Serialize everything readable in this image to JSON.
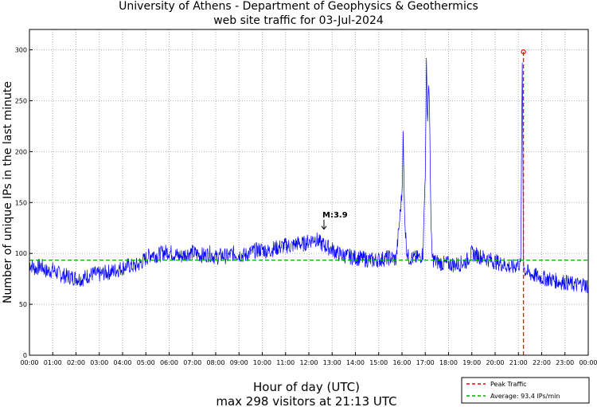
{
  "chart_data": {
    "type": "line",
    "title": "University of Athens - Department of Geophysics & Geothermics",
    "subtitle": "web site traffic for 03-Jul-2024",
    "xlabel": "Hour of day (UTC)",
    "ylabel": "Number of unique IPs in the last minute",
    "footer": "max 298 visitors at 21:13 UTC",
    "xlim": [
      0,
      24
    ],
    "ylim": [
      0,
      320
    ],
    "x_ticks": [
      "00:00",
      "01:00",
      "02:00",
      "03:00",
      "04:00",
      "05:00",
      "06:00",
      "07:00",
      "08:00",
      "09:00",
      "10:00",
      "11:00",
      "12:00",
      "13:00",
      "14:00",
      "15:00",
      "16:00",
      "17:00",
      "18:00",
      "19:00",
      "20:00",
      "21:00",
      "22:00",
      "23:00",
      "00:00"
    ],
    "y_ticks": [
      0,
      50,
      100,
      150,
      200,
      250,
      300
    ],
    "grid": true,
    "series": [
      {
        "color": "#0000ff",
        "x": [
          0.0,
          0.25,
          0.5,
          0.75,
          1.0,
          1.25,
          1.5,
          1.75,
          2.0,
          2.25,
          2.5,
          2.75,
          3.0,
          3.25,
          3.5,
          3.75,
          4.0,
          4.25,
          4.5,
          4.75,
          5.0,
          5.25,
          5.5,
          5.75,
          6.0,
          6.25,
          6.5,
          6.75,
          7.0,
          7.25,
          7.5,
          7.75,
          8.0,
          8.25,
          8.5,
          8.75,
          9.0,
          9.25,
          9.5,
          9.75,
          10.0,
          10.25,
          10.5,
          10.75,
          11.0,
          11.25,
          11.5,
          11.75,
          12.0,
          12.25,
          12.5,
          12.75,
          13.0,
          13.25,
          13.5,
          13.75,
          14.0,
          14.25,
          14.5,
          14.75,
          15.0,
          15.25,
          15.5,
          15.75,
          16.0,
          16.05,
          16.1,
          16.15,
          16.2,
          16.25,
          16.3,
          16.5,
          16.75,
          16.9,
          17.0,
          17.05,
          17.1,
          17.15,
          17.2,
          17.25,
          17.3,
          17.35,
          17.45,
          17.6,
          17.75,
          18.0,
          18.25,
          18.5,
          18.75,
          19.0,
          19.25,
          19.5,
          19.75,
          20.0,
          20.25,
          20.5,
          20.75,
          21.0,
          21.1,
          21.17,
          21.22,
          21.25,
          21.3,
          21.5,
          21.75,
          22.0,
          22.25,
          22.5,
          22.75,
          23.0,
          23.25,
          23.5,
          23.75,
          24.0
        ],
        "values": [
          90,
          85,
          88,
          82,
          84,
          80,
          78,
          77,
          76,
          75,
          78,
          80,
          79,
          81,
          82,
          84,
          86,
          88,
          87,
          90,
          95,
          100,
          98,
          101,
          102,
          99,
          97,
          100,
          101,
          99,
          98,
          100,
          96,
          98,
          97,
          100,
          99,
          98,
          101,
          103,
          104,
          102,
          105,
          106,
          108,
          107,
          110,
          109,
          112,
          115,
          110,
          107,
          104,
          100,
          98,
          97,
          96,
          95,
          94,
          93,
          94,
          95,
          96,
          94,
          160,
          215,
          150,
          120,
          105,
          97,
          96,
          95,
          96,
          100,
          180,
          285,
          230,
          270,
          215,
          120,
          96,
          94,
          92,
          91,
          90,
          90,
          89,
          90,
          92,
          100,
          98,
          96,
          94,
          92,
          90,
          88,
          86,
          90,
          88,
          298,
          90,
          85,
          83,
          80,
          78,
          76,
          75,
          74,
          72,
          72,
          70,
          69,
          70,
          68
        ]
      },
      {
        "name": "Peak Traffic",
        "color": "#ff0000",
        "style": "dashed",
        "x": [
          21.217,
          21.217
        ],
        "values": [
          0,
          298
        ]
      },
      {
        "name": "Average: 93.4 IPs/min",
        "color": "#00aa00",
        "style": "dashed",
        "x": [
          0,
          24
        ],
        "values": [
          93.4,
          93.4
        ]
      }
    ],
    "peak_marker": {
      "x": 21.217,
      "y": 298
    },
    "annotation": {
      "text": "M:3.9",
      "x": 12.65,
      "y": 123
    },
    "legend": {
      "placement": "bottom-right",
      "entries": [
        "Peak Traffic",
        "Average: 93.4 IPs/min"
      ]
    }
  }
}
